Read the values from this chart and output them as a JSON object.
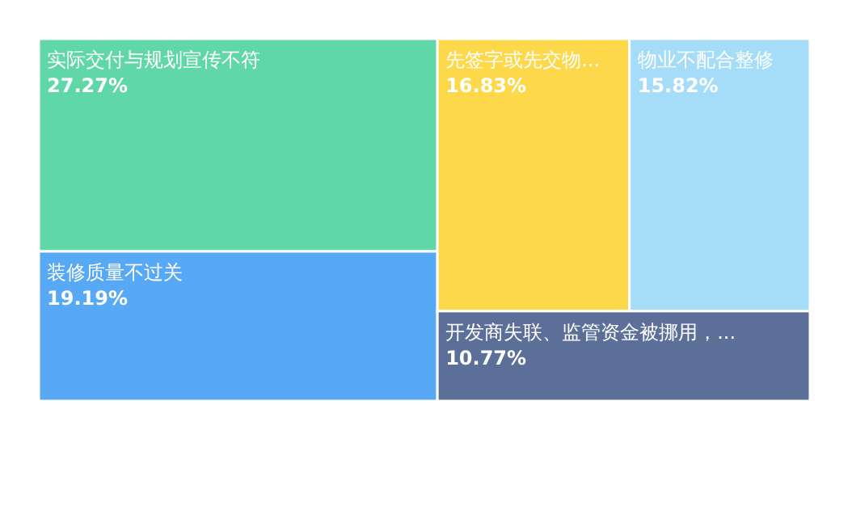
{
  "chart_data": {
    "type": "other",
    "categories": [
      "实际交付与规划宣传不符",
      "装修质量不过关",
      "先签字或先交物...",
      "物业不配合整修",
      "开发商失联、监管资金被挪用，..."
    ],
    "values": [
      27.27,
      19.19,
      16.83,
      15.82,
      10.77
    ],
    "value_labels": [
      "27.27%",
      "19.19%",
      "16.83%",
      "15.82%",
      "10.77%"
    ],
    "colors": [
      "#60d7a7",
      "#58a9f5",
      "#fdd84a",
      "#a5dcf8",
      "#5c6f99"
    ]
  }
}
